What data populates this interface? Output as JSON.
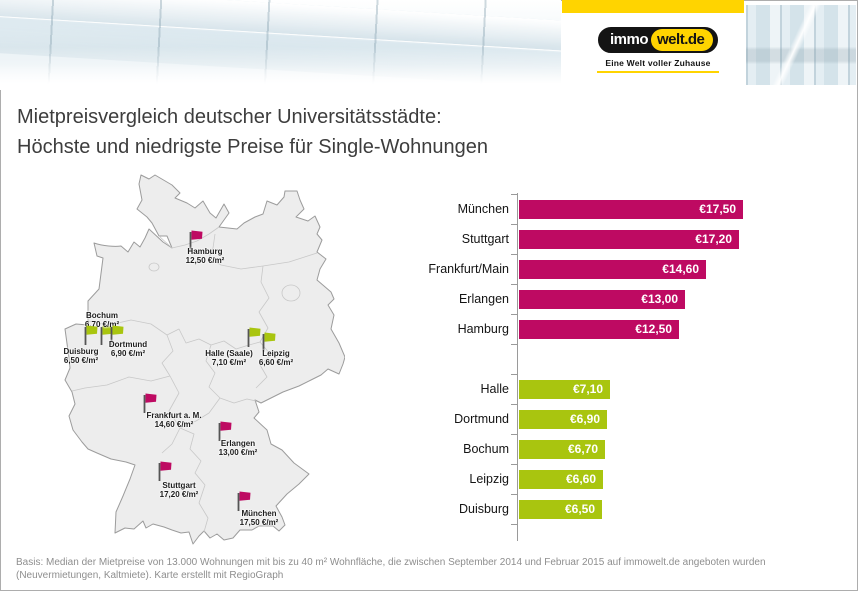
{
  "header": {
    "logo": {
      "part1": "immo",
      "part2": "welt.de",
      "tagline": "Eine Welt voller Zuhause"
    },
    "brand_colors": {
      "yellow": "#ffd400",
      "black": "#141414"
    }
  },
  "title": {
    "line1": "Mietpreisvergleich deutscher Universitätsstädte:",
    "line2": "Höchste und niedrigste Preise für Single-Wohnungen"
  },
  "chart_data": {
    "type": "bar",
    "orientation": "horizontal",
    "unit": "€/m²",
    "xlim": [
      0,
      17.6
    ],
    "grid": false,
    "legend": "none",
    "value_label_position": "inside-end",
    "series": [
      {
        "name": "Höchste Preise",
        "color": "#be0a62",
        "categories": [
          "München",
          "Stuttgart",
          "Frankfurt/Main",
          "Erlangen",
          "Hamburg"
        ],
        "values": [
          17.5,
          17.2,
          14.6,
          13.0,
          12.5
        ],
        "value_labels": [
          "€17,50",
          "€17,20",
          "€14,60",
          "€13,00",
          "€12,50"
        ]
      },
      {
        "name": "Niedrigste Preise",
        "color": "#a9c50f",
        "categories": [
          "Halle",
          "Dortmund",
          "Bochum",
          "Leipzig",
          "Duisburg"
        ],
        "values": [
          7.1,
          6.9,
          6.7,
          6.6,
          6.5
        ],
        "value_labels": [
          "€7,10",
          "€6,90",
          "€6,70",
          "€6,60",
          "€6,50"
        ]
      }
    ]
  },
  "map": {
    "region": "Deutschland",
    "cities": [
      {
        "name": "Hamburg",
        "value": "12,50 €/m²",
        "group": "high",
        "flag": [
          190,
          250
        ],
        "label": [
          205,
          247
        ]
      },
      {
        "name": "Bochum",
        "value": "6,70 €/m²",
        "group": "low",
        "flag": [
          101,
          345
        ],
        "label": [
          102,
          311
        ]
      },
      {
        "name": "Dortmund",
        "value": "6,90 €/m²",
        "group": "low",
        "flag": [
          111,
          345
        ],
        "label": [
          128,
          340
        ]
      },
      {
        "name": "Duisburg",
        "value": "6,50 €/m²",
        "group": "low",
        "flag": [
          85,
          345
        ],
        "label": [
          81,
          347
        ]
      },
      {
        "name": "Halle (Saale)",
        "value": "7,10 €/m²",
        "group": "low",
        "flag": [
          248,
          347
        ],
        "label": [
          229,
          349
        ]
      },
      {
        "name": "Leipzig",
        "value": "6,60 €/m²",
        "group": "low",
        "flag": [
          263,
          352
        ],
        "label": [
          276,
          349
        ]
      },
      {
        "name": "Frankfurt a. M.",
        "value": "14,60 €/m²",
        "group": "high",
        "flag": [
          144,
          413
        ],
        "label": [
          174,
          411
        ]
      },
      {
        "name": "Erlangen",
        "value": "13,00 €/m²",
        "group": "high",
        "flag": [
          219,
          441
        ],
        "label": [
          238,
          439
        ]
      },
      {
        "name": "Stuttgart",
        "value": "17,20 €/m²",
        "group": "high",
        "flag": [
          159,
          481
        ],
        "label": [
          179,
          481
        ]
      },
      {
        "name": "München",
        "value": "17,50 €/m²",
        "group": "high",
        "flag": [
          238,
          511
        ],
        "label": [
          259,
          509
        ]
      }
    ]
  },
  "footer": {
    "line1": "Basis: Median der Mietpreise von 13.000 Wohnungen mit bis zu 40 m² Wohnfläche, die zwischen September 2014 und Februar 2015 auf immowelt.de angeboten wurden",
    "line2": "(Neuvermietungen, Kaltmiete). Karte erstellt mit RegioGraph"
  }
}
